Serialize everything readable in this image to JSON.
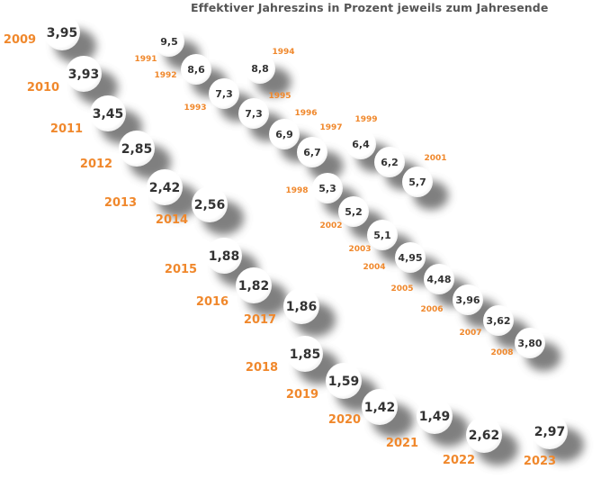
{
  "title": "Effektiver Jahreszins in Prozent jeweils zum Jahresende",
  "chart_data": {
    "type": "scatter",
    "title": "Effektiver Jahreszins in Prozent jeweils zum Jahresende",
    "colors": {
      "value_text": "#333333",
      "year_text": "#f0882c",
      "bubble": "#ffffff",
      "shadow": "#555555"
    },
    "points": [
      {
        "year": "1991",
        "value": "9,5"
      },
      {
        "year": "1992",
        "value": "8,6"
      },
      {
        "year": "1993",
        "value": "7,3"
      },
      {
        "year": "1994",
        "value": "8,8"
      },
      {
        "year": "1995",
        "value": "7,3"
      },
      {
        "year": "1996",
        "value": "6,9"
      },
      {
        "year": "1997",
        "value": "6,7"
      },
      {
        "year": "1998",
        "value": "5,3"
      },
      {
        "year": "1999",
        "value": "6,4"
      },
      {
        "year": "2000",
        "value": "6,2"
      },
      {
        "year": "2001",
        "value": "5,7"
      },
      {
        "year": "2002",
        "value": "5,2"
      },
      {
        "year": "2003",
        "value": "5,1"
      },
      {
        "year": "2004",
        "value": "4,95"
      },
      {
        "year": "2005",
        "value": "4,48"
      },
      {
        "year": "2006",
        "value": "3,96"
      },
      {
        "year": "2007",
        "value": "3,62"
      },
      {
        "year": "2008",
        "value": "3,80"
      },
      {
        "year": "2009",
        "value": "3,95"
      },
      {
        "year": "2010",
        "value": "3,93"
      },
      {
        "year": "2011",
        "value": "3,45"
      },
      {
        "year": "2012",
        "value": "2,85"
      },
      {
        "year": "2013",
        "value": "2,42"
      },
      {
        "year": "2014",
        "value": "2,56"
      },
      {
        "year": "2015",
        "value": "1,88"
      },
      {
        "year": "2016",
        "value": "1,82"
      },
      {
        "year": "2017",
        "value": "1,86"
      },
      {
        "year": "2018",
        "value": "1,85"
      },
      {
        "year": "2019",
        "value": "1,59"
      },
      {
        "year": "2020",
        "value": "1,42"
      },
      {
        "year": "2021",
        "value": "1,49"
      },
      {
        "year": "2022",
        "value": "2,62"
      },
      {
        "year": "2023",
        "value": "2,97"
      }
    ]
  }
}
